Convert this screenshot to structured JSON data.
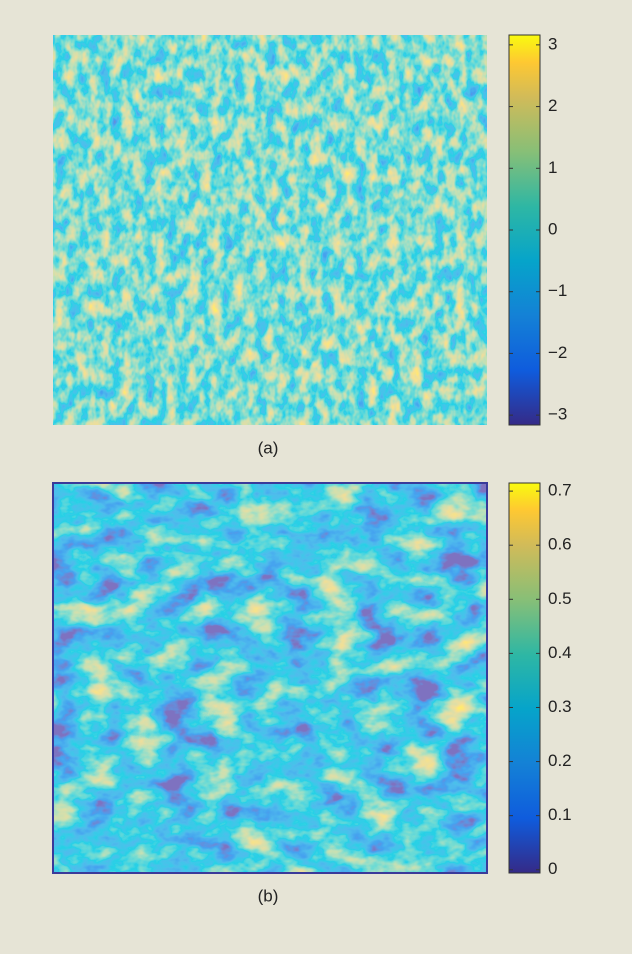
{
  "chart_data": [
    {
      "type": "heatmap",
      "caption": "(a)",
      "colormap": "parula",
      "ylim": [
        -3.16,
        3.16
      ],
      "yticks": [
        {
          "value": -3,
          "label": "−3"
        },
        {
          "value": -2,
          "label": "−2"
        },
        {
          "value": -1,
          "label": "−1"
        },
        0,
        1,
        2,
        3
      ]
    },
    {
      "type": "heatmap",
      "caption": "(b)",
      "colormap": "parula",
      "ylim": [
        -0.006,
        0.715
      ],
      "yticks": [
        0,
        0.1,
        0.2,
        0.3,
        0.4,
        0.5,
        0.6,
        0.7
      ]
    }
  ]
}
